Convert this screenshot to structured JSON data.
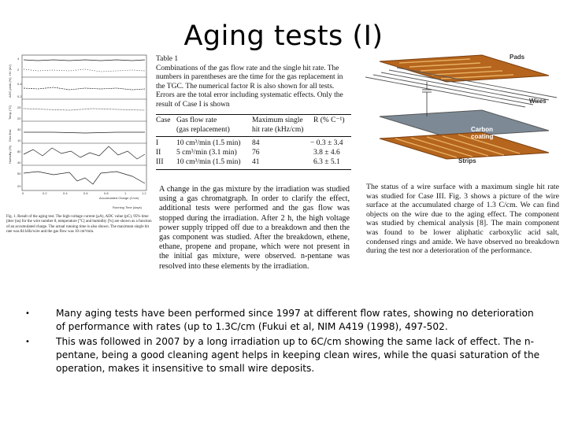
{
  "title": "Aging tests (I)",
  "figure_left": {
    "plot_labels": [
      "HV (kV)",
      "Current (µA)",
      "ADC peak (%)",
      "Temp (°C)",
      "Gas flow",
      "Humidity (%)"
    ],
    "x_ticks": [
      "0",
      "0.2",
      "0.4",
      "0.6",
      "0.8",
      "1",
      "1.2"
    ],
    "x_axis_label": "Accumulated Charge (C/cm)",
    "x_axis_label2": "Running Time (days)",
    "caption": "Fig. 1. Result of the aging test. The high-voltage current (µA), ADC value (pC), 95% time jitter (ns) for the wire number 8, temperature [°C] and humidity [%] are shown as a function of an accumulated charge. The actual running time is also shown. The maximum single hit rate was 84 kHz/wire and the gas flow was 10 cm³/min."
  },
  "table": {
    "caption": "Table 1\nCombinations of the gas flow rate and the single hit rate. The numbers in parentheses are the time for the gas replacement in the TGC. The numerical factor R is also shown for all tests. Errors are the total error including systematic effects. Only the result of Case I is shown",
    "headers": [
      "Case",
      "Gas flow rate\n(gas replacement)",
      "Maximum single\nhit rate (kHz/cm)",
      "R (% C⁻¹)"
    ],
    "rows": [
      [
        "I",
        "10 cm³/min (1.5 min)",
        "84",
        "− 0.3 ± 3.4"
      ],
      [
        "II",
        "5 cm³/min (3.1 min)",
        "76",
        "3.8 ± 4.6"
      ],
      [
        "III",
        "10 cm³/min (1.5 min)",
        "41",
        "6.3 ± 5.1"
      ]
    ]
  },
  "middle_paragraph": "A change in the gas mixture by the irradiation was studied using a gas chromatgraph. In order to clarify the effect, additional tests were performed and the gas flow was stopped during the irradiation. After 2 h, the high voltage power supply tripped off due to a breakdown and then the gas component was studied. After the breakdown, ethene, ethane, propene and propane, which were not present in the initial gas mixture, were observed. n-pentane was resolved into these elements by the irradiation.",
  "diagram": {
    "labels": [
      "Pads",
      "Wires",
      "Carbon\ncoating",
      "Strips"
    ]
  },
  "right_paragraph": "The status of a wire surface with a maximum single hit rate was studied for Case III. Fig. 3 shows a picture of the wire surface at the accumulated charge of 1.3 C/cm. We can find objects on the wire due to the aging effect. The component was studied by chemical analysis [8]. The main component was found to be lower aliphatic carboxylic acid salt, condensed rings and amide. We have observed no breakdown during the test nor a deterioration of the performance.",
  "bullets": [
    "Many aging tests have been performed since 1997 at different flow rates, showing no deterioration of performance with rates (up to 1.3C/cm (Fukui et al, NIM A419 (1998), 497-502.",
    "This was followed in 2007 by a long irradiation up to 6C/cm showing the same lack of effect. The n-pentane, being a good cleaning agent helps in keeping clean wires, while the quasi saturation of the operation, makes it insensitive to small wire deposits."
  ],
  "bullet_glyph": "•"
}
